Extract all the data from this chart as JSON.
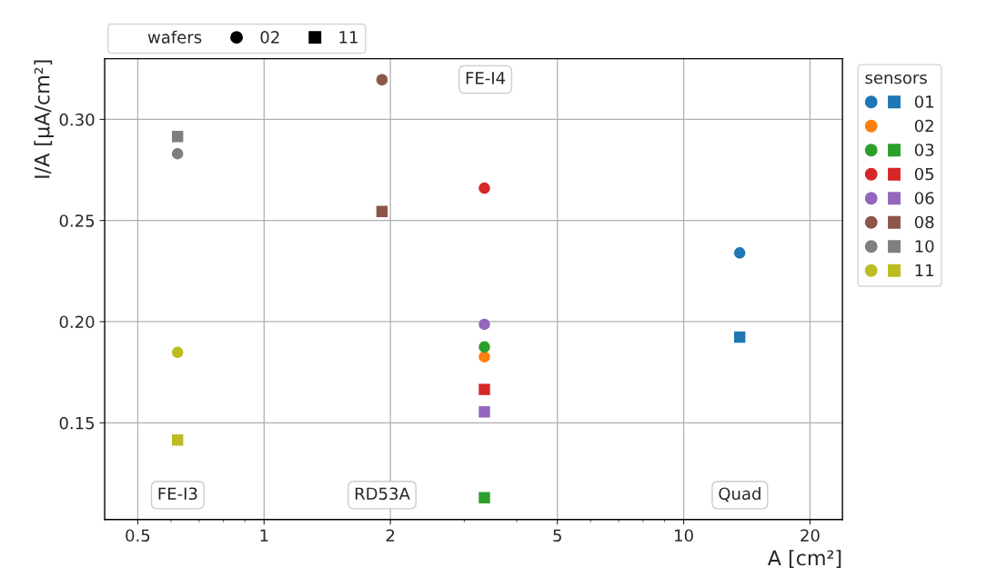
{
  "chart_data": {
    "type": "scatter",
    "xlabel": "A [cm²]",
    "ylabel": "I/A [µA/cm²]",
    "log": "x",
    "xlim": [
      0.417,
      23.9
    ],
    "xticks": [
      0.5,
      1,
      2,
      5,
      10,
      20
    ],
    "ylim": [
      0.1022,
      0.33
    ],
    "yticks": [
      {
        "value": 0.15,
        "label": "0.15"
      },
      {
        "value": 0.2,
        "label": "0.20"
      },
      {
        "value": 0.25,
        "label": "0.25"
      },
      {
        "value": 0.3,
        "label": "0.30"
      }
    ],
    "grid": true,
    "legend": "top right",
    "legend_title": "sensors",
    "annotations": [
      "wafers",
      "02",
      "11",
      "FE-I3",
      "RD53A",
      "FE-I4",
      "Quad"
    ],
    "series": [
      {
        "color": "#1f77b4",
        "marker": "circle",
        "x": [
          13.6
        ],
        "values": [
          0.234
        ]
      },
      {
        "name": "01",
        "color": "#1f77b4",
        "marker": "square",
        "x": [
          13.6
        ],
        "values": [
          0.1924
        ]
      },
      {
        "name": "02",
        "color": "#ff7f0e",
        "marker": "circle",
        "x": [
          3.35
        ],
        "values": [
          0.1826
        ]
      },
      {
        "color": "#2ca02c",
        "marker": "circle",
        "x": [
          3.35
        ],
        "values": [
          0.1875
        ]
      },
      {
        "name": "03",
        "color": "#2ca02c",
        "marker": "square",
        "x": [
          3.35
        ],
        "values": [
          0.113
        ]
      },
      {
        "color": "#d62728",
        "marker": "circle",
        "x": [
          3.35
        ],
        "values": [
          0.266
        ]
      },
      {
        "name": "05",
        "color": "#d62728",
        "marker": "square",
        "x": [
          3.35
        ],
        "values": [
          0.1665
        ]
      },
      {
        "color": "#9467bd",
        "marker": "circle",
        "x": [
          3.35
        ],
        "values": [
          0.1987
        ]
      },
      {
        "name": "06",
        "color": "#9467bd",
        "marker": "square",
        "x": [
          3.35
        ],
        "values": [
          0.1554
        ]
      },
      {
        "color": "#8c564b",
        "marker": "circle",
        "x": [
          1.91
        ],
        "values": [
          0.3196
        ]
      },
      {
        "name": "08",
        "color": "#8c564b",
        "marker": "square",
        "x": [
          1.91
        ],
        "values": [
          0.2545
        ]
      },
      {
        "color": "#7f7f7f",
        "marker": "circle",
        "x": [
          0.622
        ],
        "values": [
          0.283
        ]
      },
      {
        "name": "10",
        "color": "#7f7f7f",
        "marker": "square",
        "x": [
          0.622
        ],
        "values": [
          0.2915
        ]
      },
      {
        "color": "#bcbd22",
        "marker": "circle",
        "x": [
          0.622
        ],
        "values": [
          0.1848
        ]
      },
      {
        "name": "11",
        "color": "#bcbd22",
        "marker": "square",
        "x": [
          0.622
        ],
        "values": [
          0.1415
        ]
      }
    ]
  }
}
